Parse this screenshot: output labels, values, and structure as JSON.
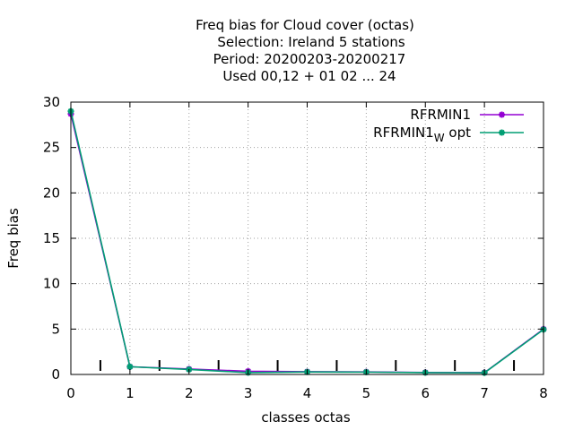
{
  "chart_data": {
    "type": "line",
    "title_lines": [
      "Freq bias  for Cloud cover (octas)",
      "Selection: Ireland       5 stations",
      "Period: 20200203-20200217",
      "Used  00,12  + 01 02 ... 24"
    ],
    "xlabel": "classes octas",
    "ylabel": "Freq bias",
    "xlim": [
      0,
      8
    ],
    "ylim": [
      0,
      30
    ],
    "x_ticks": [
      0,
      1,
      2,
      3,
      4,
      5,
      6,
      7,
      8
    ],
    "y_ticks": [
      0,
      5,
      10,
      15,
      20,
      25,
      30
    ],
    "grid": true,
    "legend_position": "top-right",
    "bottom_markers_x": [
      0.5,
      1.5,
      2.5,
      3.5,
      4.5,
      5.5,
      6.5,
      7.5
    ],
    "x": [
      0,
      1,
      2,
      3,
      4,
      5,
      6,
      7,
      8
    ],
    "series": [
      {
        "name": "RFRMIN1",
        "name_main": "RFRMIN1",
        "name_sub": "",
        "name_tail": "",
        "color": "#9400d3",
        "values": [
          28.7,
          0.85,
          0.6,
          0.35,
          0.3,
          0.28,
          0.22,
          0.2,
          5.0
        ]
      },
      {
        "name": "RFRMIN1_W opt",
        "name_main": "RFRMIN1",
        "name_sub": "W",
        "name_tail": " opt",
        "color": "#009e73",
        "values": [
          29.0,
          0.85,
          0.55,
          0.2,
          0.28,
          0.26,
          0.2,
          0.18,
          4.95
        ]
      }
    ]
  }
}
